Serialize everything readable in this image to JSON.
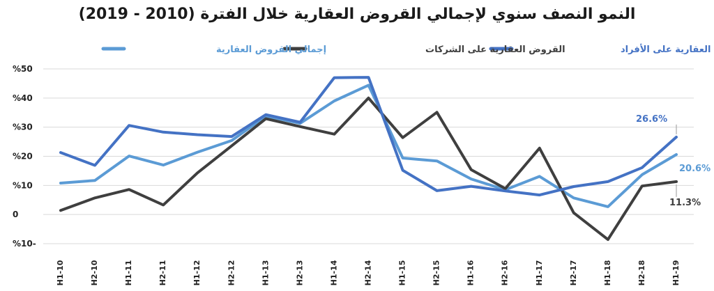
{
  "chart_data": {
    "type": "line",
    "title": "النمو النصف سنوي لإجمالي القروض العقارية خلال الفترة (2010 - 2019)",
    "categories": [
      "H1-10",
      "H2-10",
      "H1-11",
      "H2-11",
      "H1-12",
      "H2-12",
      "H1-13",
      "H2-13",
      "H1-14",
      "H2-14",
      "H1-15",
      "H2-15",
      "H1-16",
      "H2-16",
      "H1-17",
      "H2-17",
      "H1-18",
      "H2-18",
      "H1-19"
    ],
    "ylim": [
      -10,
      50
    ],
    "yticks": [
      {
        "value": -10,
        "label": "%10-"
      },
      {
        "value": 0,
        "label": "0"
      },
      {
        "value": 10,
        "label": "%10"
      },
      {
        "value": 20,
        "label": "%20"
      },
      {
        "value": 30,
        "label": "%30"
      },
      {
        "value": 40,
        "label": "%40"
      },
      {
        "value": 50,
        "label": "%50"
      }
    ],
    "grid": true,
    "legend_position": "top",
    "series": [
      {
        "name": "إجمالي القروض العقارية",
        "color": "#5b9bd5",
        "values": [
          10.8,
          11.7,
          20.1,
          17.0,
          21.4,
          25.4,
          33.8,
          31.3,
          39.0,
          44.4,
          19.4,
          18.4,
          12.2,
          8.5,
          13.1,
          5.7,
          2.7,
          13.7,
          20.6
        ]
      },
      {
        "name": "القروض العقارية على الشركات",
        "color": "#3f3f3f",
        "values": [
          1.4,
          5.7,
          8.6,
          3.3,
          14.3,
          23.6,
          32.9,
          30.2,
          27.6,
          40.0,
          26.4,
          35.1,
          15.4,
          8.9,
          22.8,
          0.6,
          -8.6,
          9.8,
          11.3
        ]
      },
      {
        "name": "القروض العقارية على الأفراد",
        "color": "#4472c4",
        "values": [
          21.3,
          16.9,
          30.6,
          28.3,
          27.4,
          26.8,
          34.3,
          31.7,
          47.0,
          47.1,
          15.2,
          8.2,
          9.7,
          8.1,
          6.7,
          9.6,
          11.3,
          16.1,
          26.6
        ]
      }
    ],
    "data_labels": [
      {
        "series": 2,
        "index": 18,
        "text": "26.6%"
      },
      {
        "series": 0,
        "index": 18,
        "text": "20.6%"
      },
      {
        "series": 1,
        "index": 18,
        "text": "11.3%"
      }
    ]
  }
}
